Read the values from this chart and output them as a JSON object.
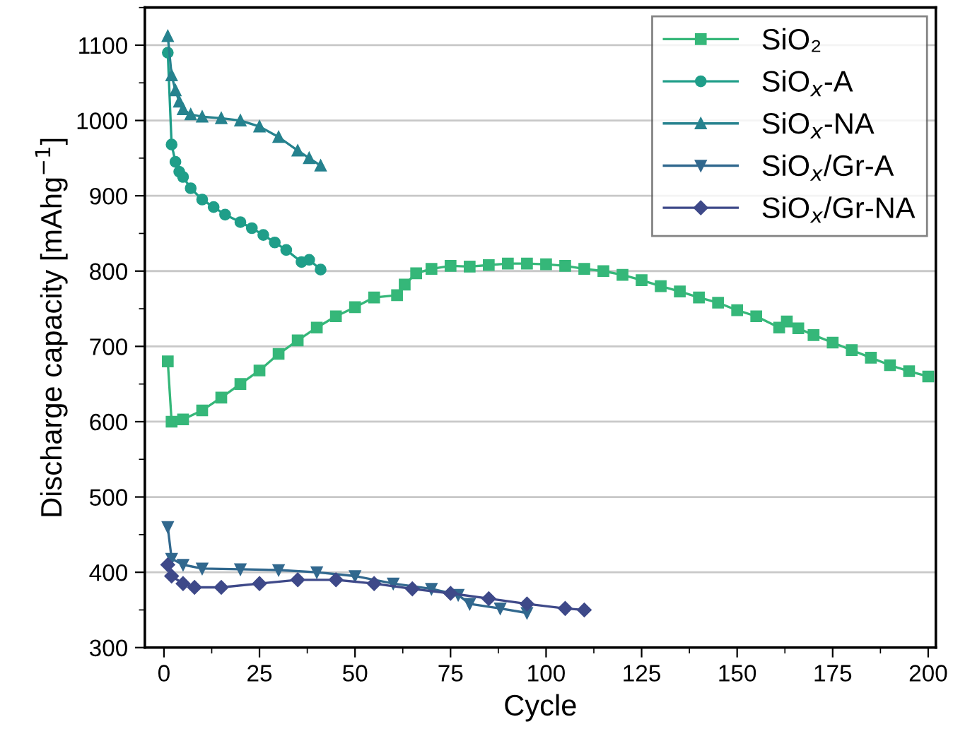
{
  "chart_data": {
    "type": "line",
    "xlabel": "Cycle",
    "ylabel": "Discharge capacity [mAhg$^{−1}$]",
    "xlim": [
      -5,
      202
    ],
    "ylim": [
      300,
      1150
    ],
    "xticks": [
      0,
      25,
      50,
      75,
      100,
      125,
      150,
      175,
      200
    ],
    "yticks": [
      300,
      400,
      500,
      600,
      700,
      800,
      900,
      1000,
      1100
    ],
    "grid": "y",
    "legend": "top right",
    "line_style": "solid",
    "series": [
      {
        "name": "SiO₂",
        "color": "#35b779",
        "marker": "square",
        "x": [
          1,
          2,
          5,
          10,
          15,
          20,
          25,
          30,
          35,
          40,
          45,
          50,
          55,
          61,
          63,
          66,
          70,
          75,
          80,
          85,
          90,
          95,
          100,
          105,
          110,
          115,
          120,
          125,
          130,
          135,
          140,
          145,
          150,
          155,
          161,
          163,
          166,
          170,
          175,
          180,
          185,
          190,
          195,
          200
        ],
        "values": [
          680,
          600,
          603,
          615,
          632,
          650,
          668,
          690,
          708,
          725,
          740,
          752,
          765,
          768,
          782,
          797,
          803,
          807,
          806,
          808,
          810,
          810,
          809,
          807,
          803,
          800,
          795,
          788,
          780,
          773,
          765,
          758,
          748,
          740,
          725,
          733,
          724,
          715,
          705,
          695,
          685,
          675,
          667,
          660
        ]
      },
      {
        "name": "SiO$_{x}$-A",
        "color": "#1f9e89",
        "marker": "circle",
        "x": [
          1,
          2,
          3,
          4,
          5,
          7,
          10,
          13,
          16,
          20,
          23,
          26,
          29,
          32,
          36,
          38,
          41
        ],
        "values": [
          1090,
          968,
          945,
          932,
          925,
          910,
          895,
          885,
          875,
          865,
          857,
          848,
          838,
          828,
          812,
          815,
          802
        ]
      },
      {
        "name": "SiO$_{x}$-NA",
        "color": "#26828e",
        "marker": "triangle",
        "x": [
          1,
          2,
          3,
          4,
          5,
          7,
          10,
          15,
          20,
          25,
          30,
          35,
          38,
          41
        ],
        "values": [
          1112,
          1060,
          1040,
          1025,
          1015,
          1008,
          1005,
          1003,
          1000,
          992,
          978,
          960,
          950,
          940
        ]
      },
      {
        "name": "SiO$_{x}$/Gr-A",
        "color": "#31688e",
        "marker": "triangle_down",
        "x": [
          1,
          2,
          5,
          10,
          20,
          30,
          40,
          50,
          60,
          70,
          77,
          80,
          88,
          95
        ],
        "values": [
          460,
          418,
          410,
          405,
          404,
          403,
          400,
          395,
          385,
          378,
          370,
          358,
          352,
          346
        ]
      },
      {
        "name": "SiO$_{x}$/Gr-NA",
        "color": "#3e4989",
        "marker": "diamond",
        "x": [
          1,
          2,
          5,
          8,
          15,
          25,
          35,
          45,
          55,
          65,
          75,
          85,
          95,
          105,
          110
        ],
        "values": [
          410,
          395,
          385,
          380,
          380,
          385,
          390,
          390,
          385,
          378,
          372,
          365,
          358,
          352,
          350
        ]
      }
    ]
  }
}
